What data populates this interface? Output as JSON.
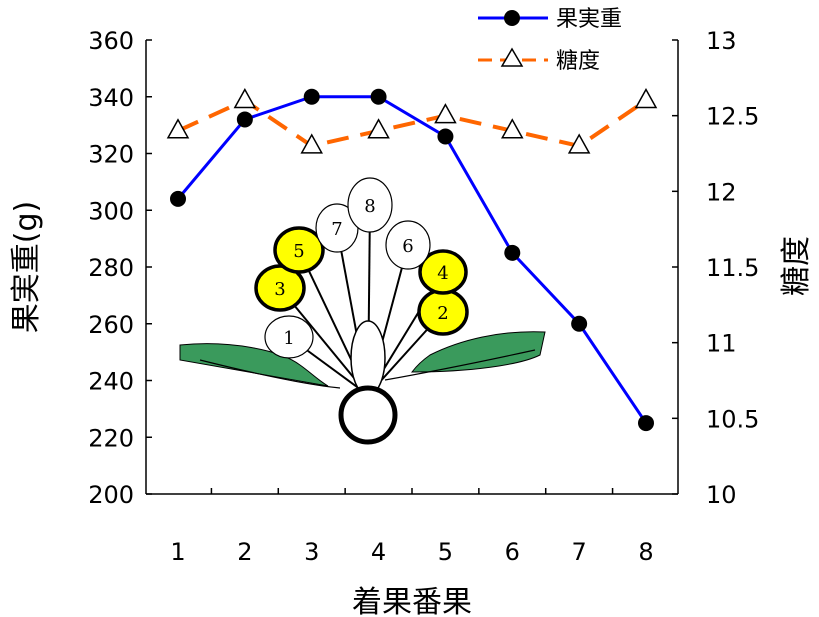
{
  "chart_data": {
    "type": "line",
    "xlabel": "着果番果",
    "categories": [
      "1",
      "2",
      "3",
      "4",
      "5",
      "6",
      "7",
      "8"
    ],
    "y_left": {
      "label": "果実重(g)",
      "ticks": [
        "200",
        "220",
        "240",
        "260",
        "280",
        "300",
        "320",
        "340",
        "360"
      ],
      "range": [
        200,
        360
      ]
    },
    "y_right": {
      "label": "糖度",
      "ticks": [
        "10",
        "10.5",
        "11",
        "11.5",
        "12",
        "12.5",
        "13"
      ],
      "range": [
        10,
        13
      ]
    },
    "series": [
      {
        "name": "果実重",
        "axis": "left",
        "color": "#0000ff",
        "marker": "filled-circle",
        "line_style": "solid",
        "values": [
          304,
          332,
          340,
          340,
          326,
          285,
          260,
          225
        ]
      },
      {
        "name": "糖度",
        "axis": "right",
        "color": "#ff6600",
        "marker": "open-triangle",
        "line_style": "dashed",
        "values": [
          12.4,
          12.6,
          12.3,
          12.4,
          12.5,
          12.4,
          12.3,
          12.6
        ]
      }
    ],
    "legend": "top-right",
    "grid": false
  },
  "inset": {
    "fruits": [
      {
        "label": "1",
        "highlight": false
      },
      {
        "label": "2",
        "highlight": true
      },
      {
        "label": "3",
        "highlight": true
      },
      {
        "label": "4",
        "highlight": true
      },
      {
        "label": "5",
        "highlight": true
      },
      {
        "label": "6",
        "highlight": false
      },
      {
        "label": "7",
        "highlight": false
      },
      {
        "label": "8",
        "highlight": false
      }
    ],
    "highlight_color": "#ffff00",
    "leaf_color": "#3a9a5c"
  }
}
